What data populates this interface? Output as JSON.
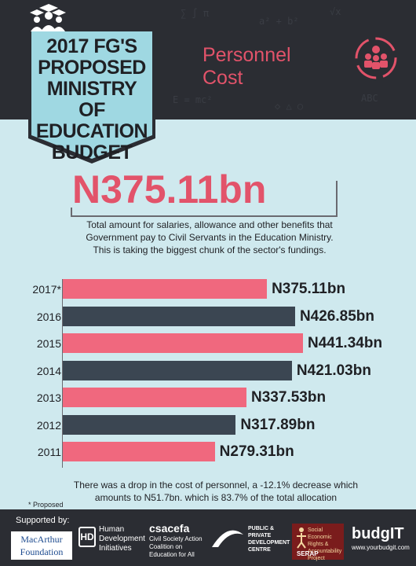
{
  "header": {
    "badge_title_lines": [
      "2017 FG'S",
      "PROPOSED",
      "MINISTRY OF",
      "EDUCATION",
      "BUDGET"
    ],
    "section_title_lines": [
      "Personnel",
      "Cost"
    ],
    "colors": {
      "dark": "#2b2d33",
      "accent": "#e2536a",
      "badge": "#9fd8e2",
      "background": "#cfe9ee"
    },
    "icons": [
      "graduation-cap-icon",
      "people-group-icon"
    ]
  },
  "summary": {
    "total": "N375.11bn",
    "description": "Total amount for salaries, allowance and other benefits that Government pay to Civil Servants in the Education Ministry. This is taking the biggest chunk of the sector's fundings."
  },
  "chart_data": {
    "type": "bar",
    "orientation": "horizontal",
    "unit": "N billion",
    "categories": [
      "2017*",
      "2016",
      "2015",
      "2014",
      "2013",
      "2012",
      "2011"
    ],
    "values": [
      375.11,
      426.85,
      441.34,
      421.03,
      337.53,
      317.89,
      279.31
    ],
    "value_labels": [
      "N375.11bn",
      "N426.85bn",
      "N441.34bn",
      "N421.03bn",
      "N337.53bn",
      "N317.89bn",
      "N279.31bn"
    ],
    "bar_colors": [
      "#f0687e",
      "#3b4652",
      "#f0687e",
      "#3b4652",
      "#f0687e",
      "#3b4652",
      "#f0687e"
    ],
    "xlim": [
      0,
      500
    ],
    "grid": false
  },
  "notes": {
    "footnote": "There was a drop in the cost of personnel, a -12.1% decrease which amounts to N51.7bn. which is 83.7% of the total allocation",
    "proposed": "* Proposed"
  },
  "footer": {
    "supported_by": "Supported by:",
    "macarthur_lines": [
      "MacArthur",
      "Foundation"
    ],
    "hdi_mark": "HD",
    "hdi_lines": [
      "Human",
      "Development",
      "Initiatives"
    ],
    "csacefa_title": "csacefa",
    "csacefa_lines": [
      "Civil Society Action",
      "Coalition on",
      "Education for All"
    ],
    "ppdc_lines": [
      "PUBLIC &",
      "PRIVATE",
      "DEVELOPMENT",
      "CENTRE"
    ],
    "serap_tagline": "Social Economic Rights & Accountability Project",
    "serap_name": "SERAP",
    "budgit_title": "budgIT",
    "budgit_url": "www.yourbudgit.com"
  }
}
